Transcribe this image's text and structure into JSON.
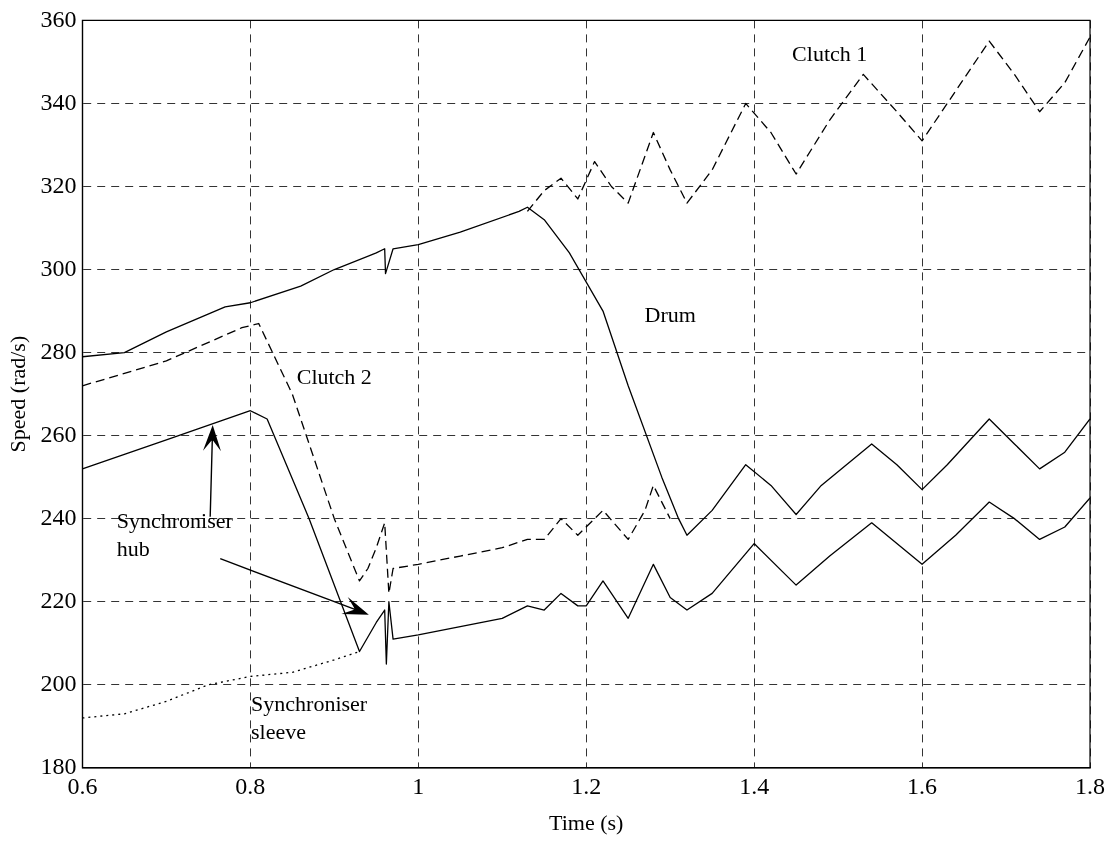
{
  "chart_data": {
    "type": "line",
    "xlabel": "Time (s)",
    "ylabel": "Speed (rad/s)",
    "xlim": [
      0.6,
      1.8
    ],
    "xticks": [
      0.6,
      0.8,
      1,
      1.2,
      1.4,
      1.6,
      1.8
    ],
    "ylim": [
      180,
      360
    ],
    "yticks": [
      180,
      200,
      220,
      240,
      260,
      280,
      300,
      320,
      340,
      360
    ],
    "grid": true,
    "legend": false,
    "marker": "none",
    "series": [
      {
        "color": "#000000",
        "line_style": "solid",
        "x": [
          0.6,
          0.65,
          0.7,
          0.77,
          0.8,
          0.86,
          0.9,
          0.95,
          0.96,
          0.961,
          0.97,
          1.0,
          1.05,
          1.12,
          1.13,
          1.15,
          1.18,
          1.22,
          1.25,
          1.29,
          1.31,
          1.32,
          1.35,
          1.39,
          1.42,
          1.45,
          1.48,
          1.54,
          1.57,
          1.6,
          1.63,
          1.68,
          1.71,
          1.74,
          1.77,
          1.8
        ],
        "values": [
          279,
          280,
          285,
          291,
          292,
          296,
          300,
          304,
          305,
          299,
          305,
          306,
          309,
          314,
          315,
          312,
          304,
          290,
          272,
          250,
          240,
          236,
          242,
          253,
          248,
          241,
          248,
          258,
          253,
          247,
          253,
          264,
          258,
          252,
          256,
          264
        ]
      },
      {
        "color": "#000000",
        "line_style": "dashed",
        "x": [
          1.13,
          1.15,
          1.17,
          1.19,
          1.21,
          1.23,
          1.25,
          1.28,
          1.3,
          1.32,
          1.35,
          1.39,
          1.42,
          1.45,
          1.49,
          1.53,
          1.57,
          1.6,
          1.64,
          1.68,
          1.71,
          1.74,
          1.77,
          1.8
        ],
        "values": [
          314,
          319,
          322,
          317,
          326,
          320,
          316,
          333,
          324,
          316,
          324,
          340,
          333,
          323,
          336,
          347,
          338,
          331,
          343,
          355,
          347,
          338,
          345,
          356
        ]
      },
      {
        "color": "#000000",
        "line_style": "dashed",
        "x": [
          0.6,
          0.7,
          0.79,
          0.81,
          0.85,
          0.9,
          0.93,
          0.94,
          0.95,
          0.96,
          0.965,
          0.97,
          1.0,
          1.05,
          1.1,
          1.13,
          1.15,
          1.17,
          1.19,
          1.22,
          1.25,
          1.27,
          1.28,
          1.3
        ],
        "values": [
          272,
          278,
          286,
          287,
          270,
          240,
          225,
          228,
          233,
          239,
          222,
          228,
          229,
          231,
          233,
          235,
          235,
          240,
          236,
          242,
          235,
          242,
          248,
          240
        ]
      },
      {
        "color": "#000000",
        "line_style": "solid",
        "x": [
          0.6,
          0.7,
          0.8,
          0.82,
          0.87,
          0.93,
          0.95,
          0.96,
          0.962,
          0.965,
          0.97,
          1.0,
          1.05,
          1.1,
          1.13,
          1.15,
          1.17,
          1.19,
          1.2,
          1.22,
          1.25,
          1.28,
          1.3,
          1.32,
          1.35,
          1.4,
          1.45,
          1.49,
          1.54,
          1.57,
          1.6,
          1.64,
          1.68,
          1.71,
          1.74,
          1.77,
          1.8
        ],
        "values": [
          252,
          259,
          266,
          264,
          240,
          208,
          215,
          218,
          205,
          220,
          211,
          212,
          214,
          216,
          219,
          218,
          222,
          219,
          219,
          225,
          216,
          229,
          221,
          218,
          222,
          234,
          224,
          231,
          239,
          234,
          229,
          236,
          244,
          240,
          235,
          238,
          245
        ]
      },
      {
        "color": "#000000",
        "line_style": "dotted",
        "x": [
          0.6,
          0.65,
          0.7,
          0.75,
          0.8,
          0.85,
          0.9,
          0.93
        ],
        "values": [
          192,
          193,
          196,
          200,
          202,
          203,
          206,
          208
        ]
      }
    ],
    "annotations": [
      "Clutch 1",
      "Drum",
      "Clutch 2",
      "Synchroniser hub",
      "Synchroniser sleeve"
    ]
  }
}
